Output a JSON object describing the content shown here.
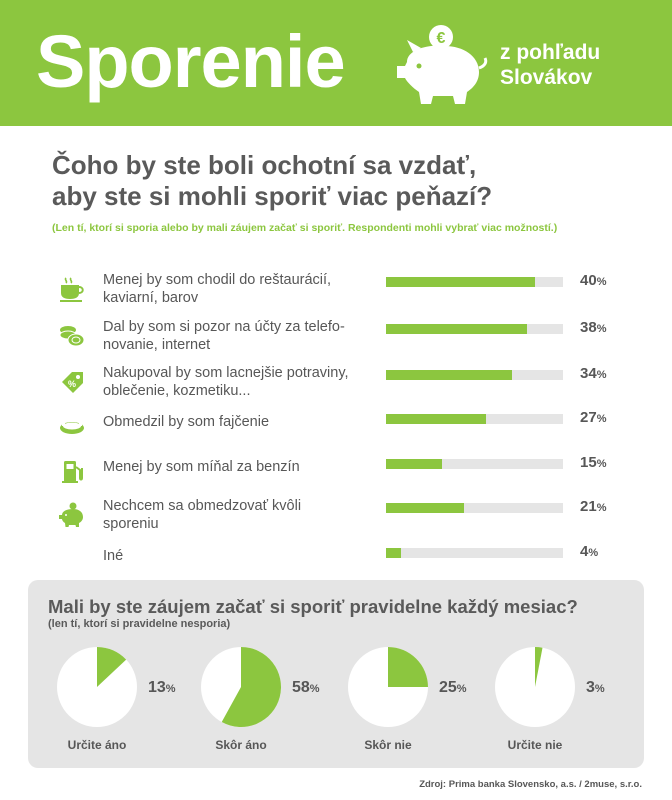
{
  "header": {
    "title": "Sporenie",
    "subtitle_line1": "z pohľadu",
    "subtitle_line2": "Slovákov",
    "piggy_coin_symbol": "€",
    "icon": "piggy-bank-icon",
    "bg_color": "#8cc63f"
  },
  "question1": {
    "title_line1": "Čoho by ste boli ochotní sa vzdať,",
    "title_line2": "aby ste si mohli sporiť viac peňazí?",
    "note": "(Len tí, ktorí si sporia alebo by mali záujem začať si sporiť. Respondenti mohli vybrať viac možností.)"
  },
  "question2": {
    "title": "Mali by ste záujem začať si sporiť pravidelne každý mesiac?",
    "note": "(len tí, ktorí si pravidelne nesporia)"
  },
  "source": "Zdroj: Prima banka Slovensko, a.s. / 2muse, s.r.o.",
  "chart_data": [
    {
      "type": "bar",
      "orientation": "horizontal",
      "title": "Čoho by ste boli ochotní sa vzdať, aby ste si mohli sporiť viac peňazí?",
      "unit": "%",
      "xlim": [
        0,
        100
      ],
      "color": "#8cc63f",
      "track_color": "#e5e5e5",
      "categories": [
        {
          "line1": "Menej by som chodil do reštaurácií,",
          "line2": "kaviarní, barov",
          "icon": "coffee-cup-icon"
        },
        {
          "line1": "Dal by som si pozor na účty za telefo-",
          "line2": "novanie, internet",
          "icon": "coins-icon"
        },
        {
          "line1": "Nakupoval by som lacnejšie potraviny,",
          "line2": "oblečenie, kozmetiku...",
          "icon": "price-tag-icon"
        },
        {
          "line1": "Obmedzil by som fajčenie",
          "line2": "",
          "icon": "ashtray-icon"
        },
        {
          "line1": "Menej by som míňal za benzín",
          "line2": "",
          "icon": "fuel-pump-icon"
        },
        {
          "line1": "Nechcem sa obmedzovať kvôli",
          "line2": "sporeniu",
          "icon": "piggy-bank-icon"
        },
        {
          "line1": "Iné",
          "line2": "",
          "icon": ""
        }
      ],
      "values": [
        40,
        38,
        34,
        27,
        15,
        21,
        4
      ]
    },
    {
      "type": "pie",
      "title": "Mali by ste záujem začať si sporiť pravidelne každý mesiac?",
      "unit": "%",
      "color": "#8cc63f",
      "categories": [
        "Určite áno",
        "Skôr áno",
        "Skôr nie",
        "Určite nie"
      ],
      "values": [
        13,
        58,
        25,
        3
      ]
    }
  ]
}
